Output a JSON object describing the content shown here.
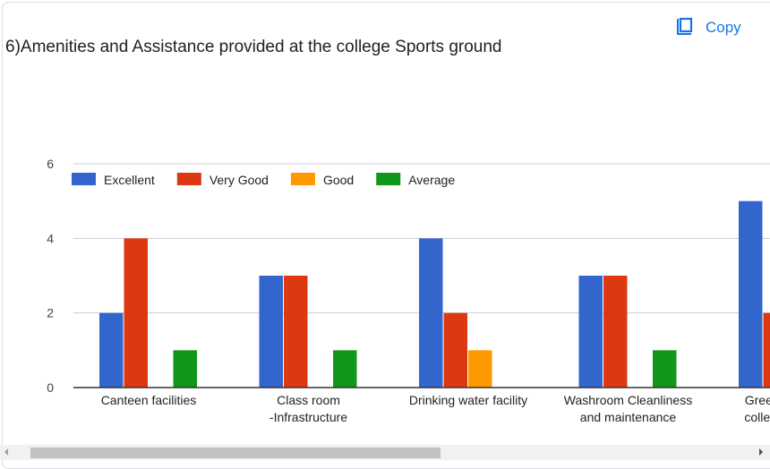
{
  "copy_label": "Copy",
  "title": "6)Amenities and Assistance provided at the college Sports ground",
  "chart_data": {
    "type": "bar",
    "title": "6)Amenities and Assistance provided at the college Sports ground",
    "xlabel": "",
    "ylabel": "",
    "ylim": [
      0,
      6
    ],
    "yticks": [
      "0",
      "2",
      "4",
      "6"
    ],
    "grid": true,
    "legend_position": "top-left",
    "categories": [
      [
        "Canteen facilities"
      ],
      [
        "Class room",
        "-Infrastructure"
      ],
      [
        "Drinking water facility"
      ],
      [
        "Washroom Cleanliness",
        "and maintenance"
      ],
      [
        "Greenery in the",
        "college campus"
      ]
    ],
    "series": [
      {
        "name": "Excellent",
        "color": "#3366cc",
        "values": [
          2,
          3,
          4,
          3,
          5
        ]
      },
      {
        "name": "Very Good",
        "color": "#dc3912",
        "values": [
          4,
          3,
          2,
          3,
          2
        ]
      },
      {
        "name": "Good",
        "color": "#ff9900",
        "values": [
          0,
          0,
          1,
          0,
          0
        ]
      },
      {
        "name": "Average",
        "color": "#109618",
        "values": [
          1,
          1,
          0,
          1,
          0
        ]
      }
    ]
  }
}
